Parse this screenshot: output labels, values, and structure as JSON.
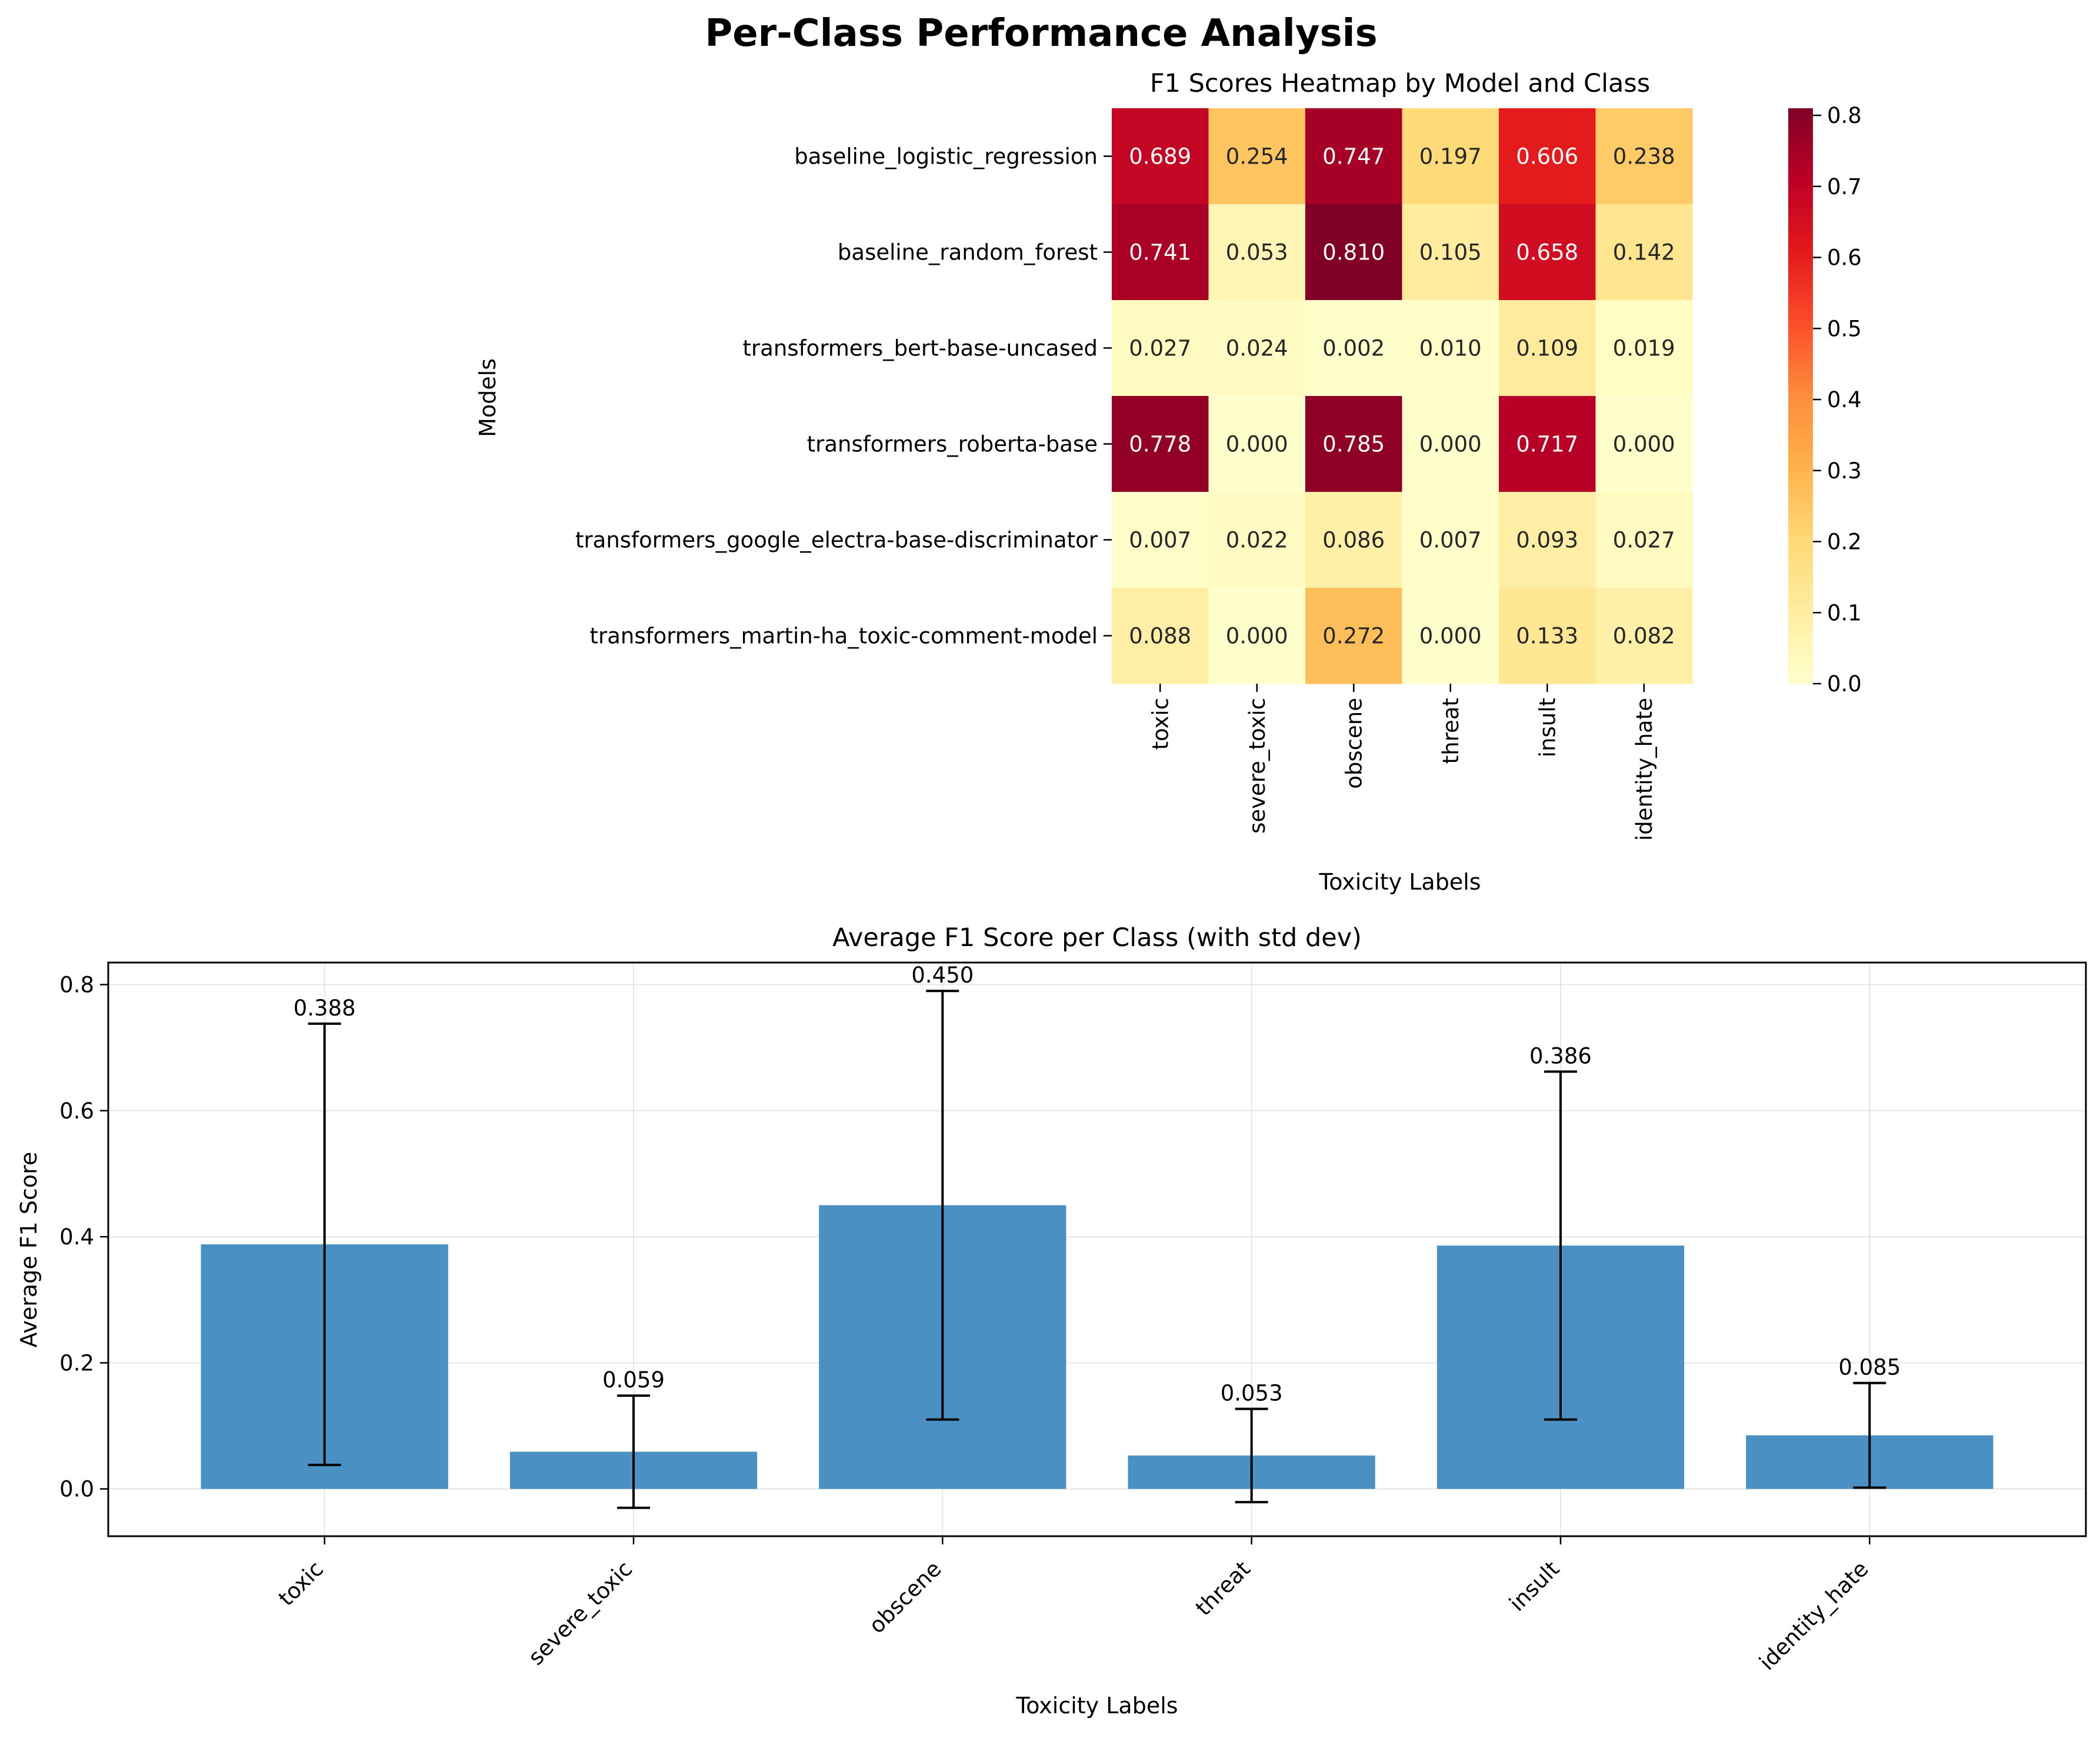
{
  "figure": {
    "title": "Per-Class Performance Analysis"
  },
  "heatmap": {
    "title": "F1 Scores Heatmap by Model and Class",
    "xlabel": "Toxicity Labels",
    "ylabel": "Models",
    "colormap": "YlOrRd",
    "colorbar_ticks": [
      "0.0",
      "0.1",
      "0.2",
      "0.3",
      "0.4",
      "0.5",
      "0.6",
      "0.7",
      "0.8"
    ]
  },
  "bars": {
    "title": "Average F1 Score per Class (with std dev)",
    "xlabel": "Toxicity Labels",
    "ylabel": "Average F1 Score",
    "bar_color": "#4a90c2",
    "yticks": [
      "0.0",
      "0.2",
      "0.4",
      "0.6",
      "0.8"
    ]
  },
  "chart_data": [
    {
      "type": "heatmap",
      "title": "F1 Scores Heatmap by Model and Class",
      "xlabel": "Toxicity Labels",
      "ylabel": "Models",
      "columns": [
        "toxic",
        "severe_toxic",
        "obscene",
        "threat",
        "insult",
        "identity_hate"
      ],
      "rows": [
        "baseline_logistic_regression",
        "baseline_random_forest",
        "transformers_bert-base-uncased",
        "transformers_roberta-base",
        "transformers_google_electra-base-discriminator",
        "transformers_martin-ha_toxic-comment-model"
      ],
      "values": [
        [
          0.689,
          0.254,
          0.747,
          0.197,
          0.606,
          0.238
        ],
        [
          0.741,
          0.053,
          0.81,
          0.105,
          0.658,
          0.142
        ],
        [
          0.027,
          0.024,
          0.002,
          0.01,
          0.109,
          0.019
        ],
        [
          0.778,
          0.0,
          0.785,
          0.0,
          0.717,
          0.0
        ],
        [
          0.007,
          0.022,
          0.086,
          0.007,
          0.093,
          0.027
        ],
        [
          0.088,
          0.0,
          0.272,
          0.0,
          0.133,
          0.082
        ]
      ],
      "labels": [
        [
          "0.689",
          "0.254",
          "0.747",
          "0.197",
          "0.606",
          "0.238"
        ],
        [
          "0.741",
          "0.053",
          "0.810",
          "0.105",
          "0.658",
          "0.142"
        ],
        [
          "0.027",
          "0.024",
          "0.002",
          "0.010",
          "0.109",
          "0.019"
        ],
        [
          "0.778",
          "0.000",
          "0.785",
          "0.000",
          "0.717",
          "0.000"
        ],
        [
          "0.007",
          "0.022",
          "0.086",
          "0.007",
          "0.093",
          "0.027"
        ],
        [
          "0.088",
          "0.000",
          "0.272",
          "0.000",
          "0.133",
          "0.082"
        ]
      ],
      "vmin": 0.0,
      "vmax": 0.81
    },
    {
      "type": "bar",
      "title": "Average F1 Score per Class (with std dev)",
      "xlabel": "Toxicity Labels",
      "ylabel": "Average F1 Score",
      "categories": [
        "toxic",
        "severe_toxic",
        "obscene",
        "threat",
        "insult",
        "identity_hate"
      ],
      "values": [
        0.388,
        0.059,
        0.45,
        0.053,
        0.386,
        0.085
      ],
      "value_labels": [
        "0.388",
        "0.059",
        "0.450",
        "0.053",
        "0.386",
        "0.085"
      ],
      "std": [
        0.35,
        0.089,
        0.34,
        0.074,
        0.276,
        0.083
      ],
      "ylim": [
        -0.075,
        0.835
      ],
      "grid": true
    }
  ]
}
